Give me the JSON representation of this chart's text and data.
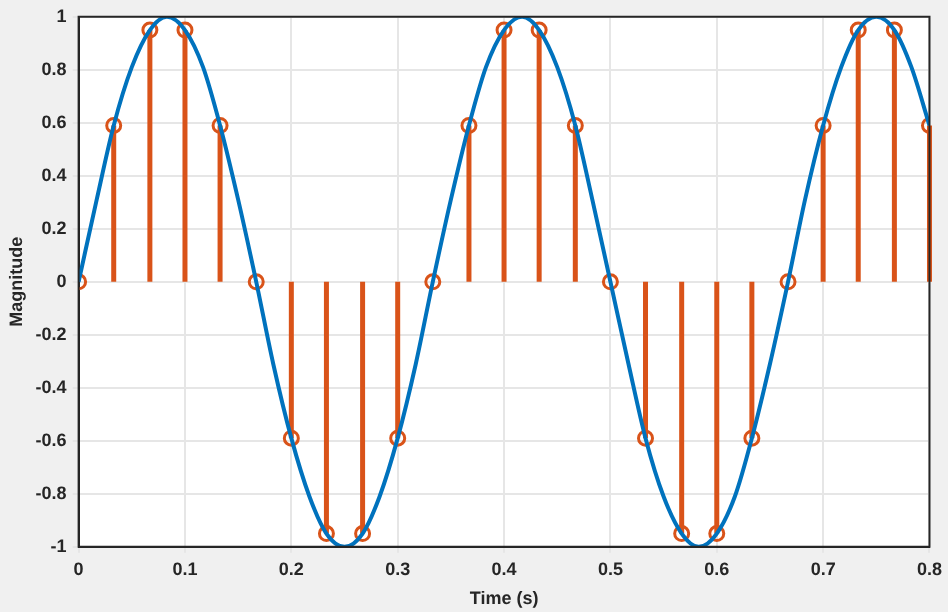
{
  "chart_data": {
    "type": "line",
    "xlabel": "Time (s)",
    "ylabel": "Magnitude",
    "xlim": [
      0,
      0.8
    ],
    "xticks": [
      0,
      0.1,
      0.2,
      0.3,
      0.4,
      0.5,
      0.6,
      0.7,
      0.8
    ],
    "ylim": [
      -1,
      1
    ],
    "yticks": [
      -1,
      -0.8,
      -0.6,
      -0.4,
      -0.2,
      0,
      0.2,
      0.4,
      0.6,
      0.8,
      1
    ],
    "grid": true,
    "legend": false,
    "series": [
      {
        "color": "#0072bd",
        "marker": "none",
        "x": [
          0,
          0.017,
          0.033,
          0.05,
          0.067,
          0.083,
          0.1,
          0.117,
          0.133,
          0.15,
          0.167,
          0.183,
          0.2,
          0.217,
          0.233,
          0.25,
          0.267,
          0.283,
          0.3,
          0.317,
          0.333,
          0.35,
          0.367,
          0.383,
          0.4,
          0.417,
          0.433,
          0.45,
          0.467,
          0.483,
          0.5,
          0.517,
          0.533,
          0.55,
          0.567,
          0.583,
          0.6,
          0.617,
          0.633,
          0.65,
          0.667,
          0.683,
          0.7,
          0.717,
          0.733,
          0.75,
          0.767,
          0.783,
          0.8
        ],
        "values": [
          0,
          0.31,
          0.59,
          0.81,
          0.95,
          1,
          0.95,
          0.81,
          0.59,
          0.31,
          0,
          -0.31,
          -0.59,
          -0.81,
          -0.95,
          -1,
          -0.95,
          -0.81,
          -0.59,
          -0.31,
          0,
          0.31,
          0.59,
          0.81,
          0.95,
          1,
          0.95,
          0.81,
          0.59,
          0.31,
          0,
          -0.31,
          -0.59,
          -0.81,
          -0.95,
          -1,
          -0.95,
          -0.81,
          -0.59,
          -0.31,
          0,
          0.31,
          0.59,
          0.81,
          0.95,
          1,
          0.95,
          0.81,
          0.59
        ]
      },
      {
        "type": "lollipop",
        "color": "#d95319",
        "marker": "circle",
        "x": [
          0,
          0.033,
          0.067,
          0.1,
          0.133,
          0.167,
          0.2,
          0.233,
          0.267,
          0.3,
          0.333,
          0.367,
          0.4,
          0.433,
          0.467,
          0.5,
          0.533,
          0.567,
          0.6,
          0.633,
          0.667,
          0.7,
          0.733,
          0.767,
          0.8
        ],
        "values": [
          0,
          0.59,
          0.95,
          0.95,
          0.59,
          0,
          -0.59,
          -0.95,
          -0.95,
          -0.59,
          0,
          0.59,
          0.95,
          0.95,
          0.59,
          0,
          -0.59,
          -0.95,
          -0.95,
          -0.59,
          0,
          0.59,
          0.95,
          0.95,
          0.59
        ]
      }
    ]
  }
}
